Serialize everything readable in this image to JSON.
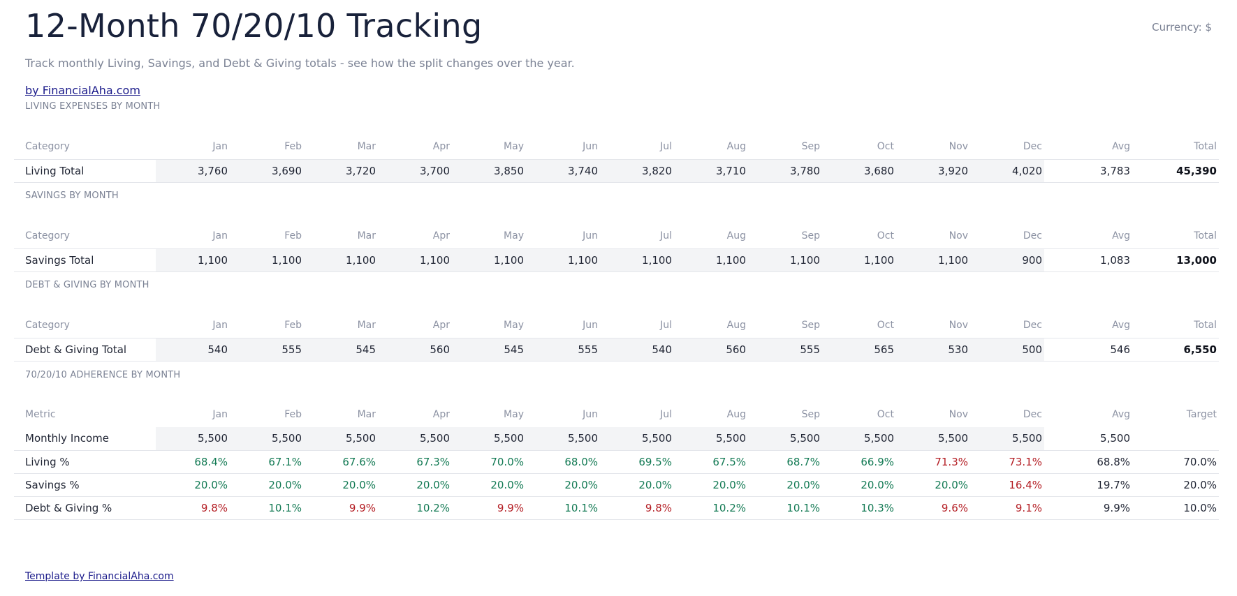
{
  "header": {
    "title": "12-Month 70/20/10 Tracking",
    "currency": "Currency: $",
    "subtitle": "Track monthly Living, Savings, and Debt & Giving totals - see how the split changes over the year.",
    "link": "by FinancialAha.com"
  },
  "months": [
    "Jan",
    "Feb",
    "Mar",
    "Apr",
    "May",
    "Jun",
    "Jul",
    "Aug",
    "Sep",
    "Oct",
    "Nov",
    "Dec"
  ],
  "living": {
    "label": "LIVING EXPENSES BY MONTH",
    "col_category": "Category",
    "col_avg": "Avg",
    "col_total": "Total",
    "row_label": "Living Total",
    "values": [
      "3,760",
      "3,690",
      "3,720",
      "3,700",
      "3,850",
      "3,740",
      "3,820",
      "3,710",
      "3,780",
      "3,680",
      "3,920",
      "4,020"
    ],
    "avg": "3,783",
    "total": "45,390"
  },
  "savings": {
    "label": "SAVINGS BY MONTH",
    "col_category": "Category",
    "col_avg": "Avg",
    "col_total": "Total",
    "row_label": "Savings Total",
    "values": [
      "1,100",
      "1,100",
      "1,100",
      "1,100",
      "1,100",
      "1,100",
      "1,100",
      "1,100",
      "1,100",
      "1,100",
      "1,100",
      "900"
    ],
    "avg": "1,083",
    "total": "13,000"
  },
  "debt": {
    "label": "DEBT & GIVING BY MONTH",
    "col_category": "Category",
    "col_avg": "Avg",
    "col_total": "Total",
    "row_label": "Debt & Giving Total",
    "values": [
      "540",
      "555",
      "545",
      "560",
      "545",
      "555",
      "540",
      "560",
      "555",
      "565",
      "530",
      "500"
    ],
    "avg": "546",
    "total": "6,550"
  },
  "adherence": {
    "label": "70/20/10 ADHERENCE BY MONTH",
    "col_metric": "Metric",
    "col_avg": "Avg",
    "col_target": "Target",
    "income": {
      "label": "Monthly Income",
      "values": [
        "5,500",
        "5,500",
        "5,500",
        "5,500",
        "5,500",
        "5,500",
        "5,500",
        "5,500",
        "5,500",
        "5,500",
        "5,500",
        "5,500"
      ],
      "avg": "5,500",
      "target": ""
    },
    "living_pct": {
      "label": "Living %",
      "values": [
        "68.4%",
        "67.1%",
        "67.6%",
        "67.3%",
        "70.0%",
        "68.0%",
        "69.5%",
        "67.5%",
        "68.7%",
        "66.9%",
        "71.3%",
        "73.1%"
      ],
      "status": [
        "good",
        "good",
        "good",
        "good",
        "good",
        "good",
        "good",
        "good",
        "good",
        "good",
        "bad",
        "bad"
      ],
      "avg": "68.8%",
      "target": "70.0%"
    },
    "savings_pct": {
      "label": "Savings %",
      "values": [
        "20.0%",
        "20.0%",
        "20.0%",
        "20.0%",
        "20.0%",
        "20.0%",
        "20.0%",
        "20.0%",
        "20.0%",
        "20.0%",
        "20.0%",
        "16.4%"
      ],
      "status": [
        "good",
        "good",
        "good",
        "good",
        "good",
        "good",
        "good",
        "good",
        "good",
        "good",
        "good",
        "bad"
      ],
      "avg": "19.7%",
      "target": "20.0%"
    },
    "debt_pct": {
      "label": "Debt & Giving %",
      "values": [
        "9.8%",
        "10.1%",
        "9.9%",
        "10.2%",
        "9.9%",
        "10.1%",
        "9.8%",
        "10.2%",
        "10.1%",
        "10.3%",
        "9.6%",
        "9.1%"
      ],
      "status": [
        "bad",
        "good",
        "bad",
        "good",
        "bad",
        "good",
        "bad",
        "good",
        "good",
        "good",
        "bad",
        "bad"
      ],
      "avg": "9.9%",
      "target": "10.0%"
    }
  },
  "colors": {
    "good": "#137a54",
    "bad": "#b41e24",
    "title": "#18213a",
    "muted": "#7b8294",
    "link": "#1a1a8a"
  },
  "footer": {
    "link": "Template by FinancialAha.com"
  }
}
